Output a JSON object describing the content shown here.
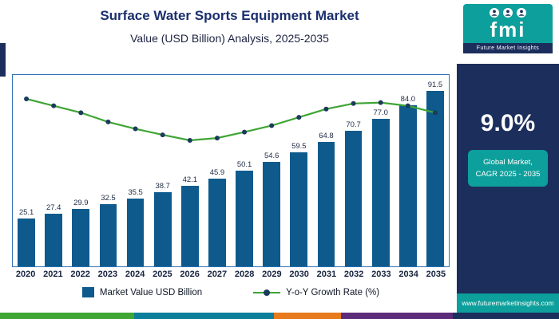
{
  "header": {
    "title": "Surface Water Sports Equipment Market",
    "subtitle": "Value (USD Billion) Analysis, 2025-2035"
  },
  "logo": {
    "abbr": "fmi",
    "name": "Future Market Insights"
  },
  "sidebar": {
    "cagr": "9.0%",
    "cagr_label_line1": "Global Market,",
    "cagr_label_line2": "CAGR 2025 - 2035",
    "website": "www.futuremarketinsights.com"
  },
  "legend": {
    "bars": "Market Value USD Billion",
    "line": "Y-o-Y Growth Rate (%)"
  },
  "chart_data": {
    "type": "bar",
    "title": "Surface Water Sports Equipment Market",
    "subtitle": "Value (USD Billion) Analysis, 2025-2035",
    "categories": [
      "2020",
      "2021",
      "2022",
      "2023",
      "2024",
      "2025",
      "2026",
      "2027",
      "2028",
      "2029",
      "2030",
      "2031",
      "2032",
      "2033",
      "2034",
      "2035"
    ],
    "series": [
      {
        "name": "Market Value USD Billion",
        "type": "bar",
        "values": [
          25.1,
          27.4,
          29.9,
          32.5,
          35.5,
          38.7,
          42.1,
          45.9,
          50.1,
          54.6,
          59.5,
          64.8,
          70.7,
          77.0,
          84.0,
          91.5
        ]
      },
      {
        "name": "Y-o-Y Growth Rate (%)",
        "type": "line",
        "estimated": true,
        "values": [
          9.5,
          9.35,
          9.2,
          9.0,
          8.85,
          8.72,
          8.6,
          8.65,
          8.78,
          8.92,
          9.1,
          9.28,
          9.4,
          9.42,
          9.35,
          9.2
        ]
      }
    ],
    "ylim": [
      0,
      100
    ],
    "value_labels": true,
    "y_axis_visible": false,
    "legend_position": "bottom"
  },
  "colors": {
    "bar": "#0e5a8c",
    "line": "#3fa535",
    "marker": "#1b3a5c",
    "navy": "#1c2e5c",
    "teal": "#0d9f9b",
    "title": "#1b2f6e",
    "plot_border": "#2e74b5"
  },
  "footer": {
    "stripe": [
      {
        "color": "#3fa535",
        "width_pct": 24
      },
      {
        "color": "#0d7f9b",
        "width_pct": 25
      },
      {
        "color": "#e87a1e",
        "width_pct": 12
      },
      {
        "color": "#5c2b7a",
        "width_pct": 20
      },
      {
        "color": "#1c2e5c",
        "width_pct": 19
      }
    ]
  }
}
